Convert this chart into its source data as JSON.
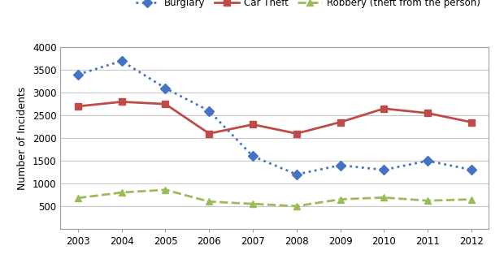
{
  "years": [
    2003,
    2004,
    2005,
    2006,
    2007,
    2008,
    2009,
    2010,
    2011,
    2012
  ],
  "burglary": [
    3400,
    3700,
    3100,
    2600,
    1600,
    1200,
    1400,
    1300,
    1500,
    1300
  ],
  "car_theft": [
    2700,
    2800,
    2750,
    2100,
    2300,
    2100,
    2350,
    2650,
    2550,
    2350
  ],
  "robbery": [
    680,
    800,
    860,
    600,
    550,
    500,
    650,
    690,
    620,
    650
  ],
  "burglary_color": "#4472C4",
  "car_theft_color": "#BE4B48",
  "robbery_color": "#9BBB59",
  "ylabel": "Number of Incidents",
  "ylim": [
    0,
    4000
  ],
  "yticks": [
    0,
    500,
    1000,
    1500,
    2000,
    2500,
    3000,
    3500,
    4000
  ],
  "legend_labels": [
    "Burglary",
    "Car Theft",
    "Robbery (theft from the person)"
  ],
  "background_color": "#ffffff",
  "plot_bg_color": "#ffffff",
  "grid_color": "#c8c8c8",
  "spine_color": "#a0a0a0"
}
